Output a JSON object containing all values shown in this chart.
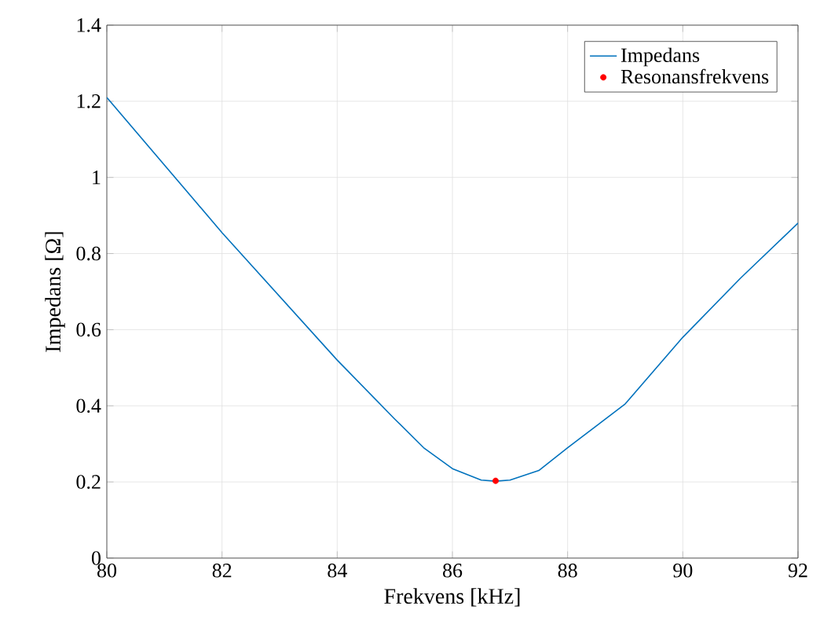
{
  "chart_data": {
    "type": "line",
    "xlabel": "Frekvens [kHz]",
    "ylabel": "Impedans [Ω]",
    "xlim": [
      80,
      92
    ],
    "xticks": [
      80,
      82,
      84,
      86,
      88,
      90,
      92
    ],
    "ylim": [
      0,
      1.4
    ],
    "yticks": [
      0,
      0.2,
      0.4,
      0.6,
      0.8,
      1,
      1.2,
      1.4
    ],
    "grid": true,
    "legend": "top right",
    "series": [
      {
        "name": "Impedans",
        "color": "#0072bd",
        "marker": "none",
        "x": [
          80,
          82,
          84,
          85,
          85.5,
          86,
          86.5,
          86.75,
          87,
          87.5,
          88,
          89,
          90,
          91,
          92
        ],
        "values": [
          1.21,
          0.855,
          0.52,
          0.365,
          0.29,
          0.235,
          0.205,
          0.202,
          0.205,
          0.23,
          0.29,
          0.405,
          0.58,
          0.735,
          0.88
        ]
      },
      {
        "name": "Resonansfrekvens",
        "type": "scatter",
        "color": "#ff0000",
        "marker": "circle",
        "x": [
          86.75
        ],
        "values": [
          0.203
        ]
      }
    ]
  }
}
